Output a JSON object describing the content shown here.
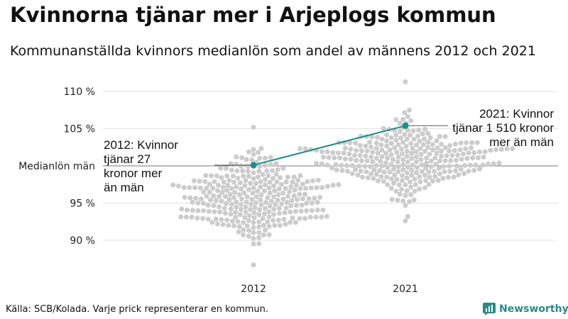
{
  "title": "Kvinnorna tjänar mer i Arjeplogs kommun",
  "subtitle": "Kommunanställda kvinnors medianlön som andel av männens 2012 och 2021",
  "source": "Källa: SCB/Kolada. Varje prick representerar en kommun.",
  "brand": {
    "name": "Newsworthy",
    "icon": "newsworthy-logo-icon",
    "color": "#2a8a86"
  },
  "chart_data": {
    "type": "scatter",
    "subtype": "beeswarm",
    "categories": [
      "2012",
      "2021"
    ],
    "yticks": [
      {
        "value": 90,
        "label": "90 %"
      },
      {
        "value": 95,
        "label": "95 %"
      },
      {
        "value": 100,
        "label": "Medianlön män"
      },
      {
        "value": 105,
        "label": "105 %"
      },
      {
        "value": 110,
        "label": "110 %"
      }
    ],
    "ylim": [
      86,
      112
    ],
    "grid": true,
    "reference_line": 100,
    "swarm_color": "#cccccc",
    "highlight_color": "#1a8f84",
    "swarms": [
      {
        "category": "2012",
        "min": 86.7,
        "max": 105.2,
        "median": 95.9
      },
      {
        "category": "2021",
        "min": 92.6,
        "max": 111.3,
        "median": 101.0
      }
    ],
    "highlight": {
      "series": "Arjeplog",
      "points": [
        {
          "x": "2012",
          "y": 100.1
        },
        {
          "x": "2021",
          "y": 105.4
        }
      ]
    },
    "annotations": [
      {
        "x": "2012",
        "lines": [
          "2012: Kvinnor",
          "tjänar 27",
          "kronor mer",
          "än män"
        ]
      },
      {
        "x": "2021",
        "lines": [
          "2021: Kvinnor",
          "tjänar 1 510 kronor",
          "mer än män"
        ]
      }
    ]
  }
}
